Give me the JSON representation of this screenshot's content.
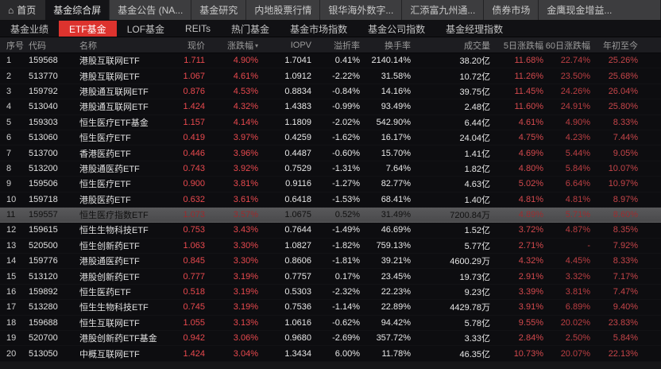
{
  "colors": {
    "accent_red": "#dd332e",
    "up_bright": "#e9494e",
    "up_5d": "#d4494d",
    "up_60d": "#bc3f43",
    "up_ytd": "#c64549",
    "highlight_row_bg": "#4f4f51"
  },
  "topnav": {
    "home_label": "首页",
    "tabs": [
      {
        "label": "基金综合屏",
        "active": true
      },
      {
        "label": "基金公告 (NA...",
        "active": false
      },
      {
        "label": "基金研究",
        "active": false
      },
      {
        "label": "内地股票行情",
        "active": false
      },
      {
        "label": "银华海外数字...",
        "active": false
      },
      {
        "label": "汇添富九州通...",
        "active": false
      },
      {
        "label": "债券市场",
        "active": false
      },
      {
        "label": "金鹰现金增益...",
        "active": false
      }
    ]
  },
  "subnav": {
    "items": [
      {
        "label": "基金业绩",
        "active": false
      },
      {
        "label": "ETF基金",
        "active": true
      },
      {
        "label": "LOF基金",
        "active": false
      },
      {
        "label": "REITs",
        "active": false
      },
      {
        "label": "热门基金",
        "active": false
      },
      {
        "label": "基金市场指数",
        "active": false
      },
      {
        "label": "基金公司指数",
        "active": false
      },
      {
        "label": "基金经理指数",
        "active": false
      }
    ]
  },
  "table": {
    "columns": [
      "序号",
      "代码",
      "名称",
      "现价",
      "涨跌幅",
      "IOPV",
      "溢折率",
      "换手率",
      "成交量",
      "5日涨跌幅",
      "60日涨跌幅",
      "年初至今"
    ],
    "sorted_column": "涨跌幅",
    "rows": [
      {
        "seq": "1",
        "code": "159568",
        "name": "港股互联网ETF",
        "price": "1.711",
        "chg": "4.90%",
        "iopv": "1.7041",
        "prem": "0.41%",
        "turn": "2140.14%",
        "vol": "38.20亿",
        "d5": "11.68%",
        "d60": "22.74%",
        "ytd": "25.26%",
        "highlight": false
      },
      {
        "seq": "2",
        "code": "513770",
        "name": "港股互联网ETF",
        "price": "1.067",
        "chg": "4.61%",
        "iopv": "1.0912",
        "prem": "-2.22%",
        "turn": "31.58%",
        "vol": "10.72亿",
        "d5": "11.26%",
        "d60": "23.50%",
        "ytd": "25.68%",
        "highlight": false
      },
      {
        "seq": "3",
        "code": "159792",
        "name": "港股通互联网ETF",
        "price": "0.876",
        "chg": "4.53%",
        "iopv": "0.8834",
        "prem": "-0.84%",
        "turn": "14.16%",
        "vol": "39.75亿",
        "d5": "11.45%",
        "d60": "24.26%",
        "ytd": "26.04%",
        "highlight": false
      },
      {
        "seq": "4",
        "code": "513040",
        "name": "港股通互联网ETF",
        "price": "1.424",
        "chg": "4.32%",
        "iopv": "1.4383",
        "prem": "-0.99%",
        "turn": "93.49%",
        "vol": "2.48亿",
        "d5": "11.60%",
        "d60": "24.91%",
        "ytd": "25.80%",
        "highlight": false
      },
      {
        "seq": "5",
        "code": "159303",
        "name": "恒生医疗ETF基金",
        "price": "1.157",
        "chg": "4.14%",
        "iopv": "1.1809",
        "prem": "-2.02%",
        "turn": "542.90%",
        "vol": "6.44亿",
        "d5": "4.61%",
        "d60": "4.90%",
        "ytd": "8.33%",
        "highlight": false
      },
      {
        "seq": "6",
        "code": "513060",
        "name": "恒生医疗ETF",
        "price": "0.419",
        "chg": "3.97%",
        "iopv": "0.4259",
        "prem": "-1.62%",
        "turn": "16.17%",
        "vol": "24.04亿",
        "d5": "4.75%",
        "d60": "4.23%",
        "ytd": "7.44%",
        "highlight": false
      },
      {
        "seq": "7",
        "code": "513700",
        "name": "香港医药ETF",
        "price": "0.446",
        "chg": "3.96%",
        "iopv": "0.4487",
        "prem": "-0.60%",
        "turn": "15.70%",
        "vol": "1.41亿",
        "d5": "4.69%",
        "d60": "5.44%",
        "ytd": "9.05%",
        "highlight": false
      },
      {
        "seq": "8",
        "code": "513200",
        "name": "港股通医药ETF",
        "price": "0.743",
        "chg": "3.92%",
        "iopv": "0.7529",
        "prem": "-1.31%",
        "turn": "7.64%",
        "vol": "1.82亿",
        "d5": "4.80%",
        "d60": "5.84%",
        "ytd": "10.07%",
        "highlight": false
      },
      {
        "seq": "9",
        "code": "159506",
        "name": "恒生医疗ETF",
        "price": "0.900",
        "chg": "3.81%",
        "iopv": "0.9116",
        "prem": "-1.27%",
        "turn": "82.77%",
        "vol": "4.63亿",
        "d5": "5.02%",
        "d60": "6.64%",
        "ytd": "10.97%",
        "highlight": false
      },
      {
        "seq": "10",
        "code": "159718",
        "name": "港股医药ETF",
        "price": "0.632",
        "chg": "3.61%",
        "iopv": "0.6418",
        "prem": "-1.53%",
        "turn": "68.41%",
        "vol": "1.40亿",
        "d5": "4.81%",
        "d60": "4.81%",
        "ytd": "8.97%",
        "highlight": false
      },
      {
        "seq": "11",
        "code": "159557",
        "name": "恒生医疗指数ETF",
        "price": "1.073",
        "chg": "3.57%",
        "iopv": "1.0675",
        "prem": "0.52%",
        "turn": "31.49%",
        "vol": "7200.84万",
        "d5": "4.89%",
        "d60": "5.71%",
        "ytd": "8.60%",
        "highlight": true
      },
      {
        "seq": "12",
        "code": "159615",
        "name": "恒生生物科技ETF",
        "price": "0.753",
        "chg": "3.43%",
        "iopv": "0.7644",
        "prem": "-1.49%",
        "turn": "46.69%",
        "vol": "1.52亿",
        "d5": "3.72%",
        "d60": "4.87%",
        "ytd": "8.35%",
        "highlight": false
      },
      {
        "seq": "13",
        "code": "520500",
        "name": "恒生创新药ETF",
        "price": "1.063",
        "chg": "3.30%",
        "iopv": "1.0827",
        "prem": "-1.82%",
        "turn": "759.13%",
        "vol": "5.77亿",
        "d5": "2.71%",
        "d60": "-",
        "ytd": "7.92%",
        "highlight": false
      },
      {
        "seq": "14",
        "code": "159776",
        "name": "港股通医药ETF",
        "price": "0.845",
        "chg": "3.30%",
        "iopv": "0.8606",
        "prem": "-1.81%",
        "turn": "39.21%",
        "vol": "4600.29万",
        "d5": "4.32%",
        "d60": "4.45%",
        "ytd": "8.33%",
        "highlight": false
      },
      {
        "seq": "15",
        "code": "513120",
        "name": "港股创新药ETF",
        "price": "0.777",
        "chg": "3.19%",
        "iopv": "0.7757",
        "prem": "0.17%",
        "turn": "23.45%",
        "vol": "19.73亿",
        "d5": "2.91%",
        "d60": "3.32%",
        "ytd": "7.17%",
        "highlight": false
      },
      {
        "seq": "16",
        "code": "159892",
        "name": "恒生医药ETF",
        "price": "0.518",
        "chg": "3.19%",
        "iopv": "0.5303",
        "prem": "-2.32%",
        "turn": "22.23%",
        "vol": "9.23亿",
        "d5": "3.39%",
        "d60": "3.81%",
        "ytd": "7.47%",
        "highlight": false
      },
      {
        "seq": "17",
        "code": "513280",
        "name": "恒生生物科技ETF",
        "price": "0.745",
        "chg": "3.19%",
        "iopv": "0.7536",
        "prem": "-1.14%",
        "turn": "22.89%",
        "vol": "4429.78万",
        "d5": "3.91%",
        "d60": "6.89%",
        "ytd": "9.40%",
        "highlight": false
      },
      {
        "seq": "18",
        "code": "159688",
        "name": "恒生互联网ETF",
        "price": "1.055",
        "chg": "3.13%",
        "iopv": "1.0616",
        "prem": "-0.62%",
        "turn": "94.42%",
        "vol": "5.78亿",
        "d5": "9.55%",
        "d60": "20.02%",
        "ytd": "23.83%",
        "highlight": false
      },
      {
        "seq": "19",
        "code": "520700",
        "name": "港股创新药ETF基金",
        "price": "0.942",
        "chg": "3.06%",
        "iopv": "0.9680",
        "prem": "-2.69%",
        "turn": "357.72%",
        "vol": "3.33亿",
        "d5": "2.84%",
        "d60": "2.50%",
        "ytd": "5.84%",
        "highlight": false
      },
      {
        "seq": "20",
        "code": "513050",
        "name": "中概互联网ETF",
        "price": "1.424",
        "chg": "3.04%",
        "iopv": "1.3434",
        "prem": "6.00%",
        "turn": "11.78%",
        "vol": "46.35亿",
        "d5": "10.73%",
        "d60": "20.07%",
        "ytd": "22.13%",
        "highlight": false
      }
    ]
  }
}
